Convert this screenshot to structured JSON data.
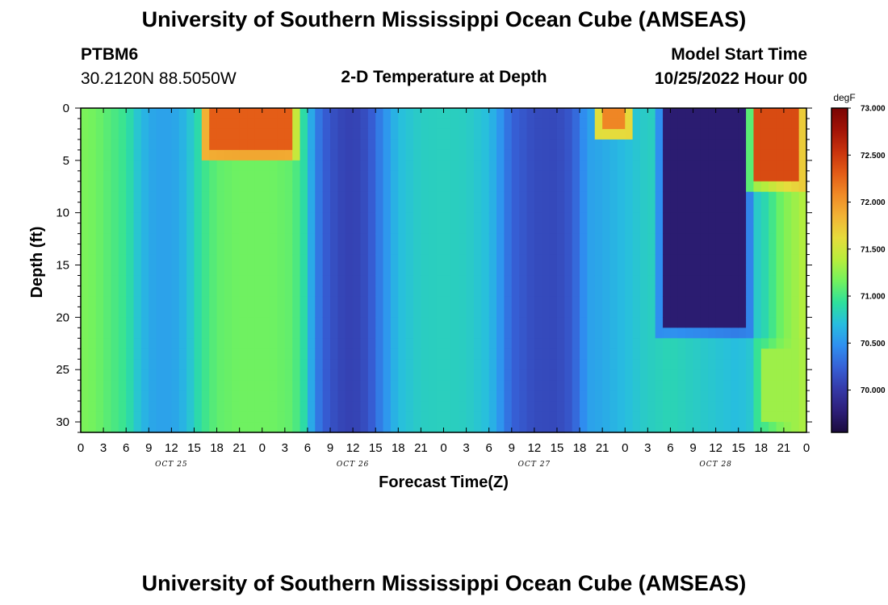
{
  "header": {
    "title": "University of Southern Mississippi Ocean Cube (AMSEAS)",
    "station_id": "PTBM6",
    "station_coords": "30.2120N  88.5050W",
    "plot_title": "2-D Temperature at Depth",
    "model_start_label": "Model Start Time",
    "model_start_value": "10/25/2022 Hour 00"
  },
  "footer": {
    "title": "University of Southern Mississippi Ocean Cube (AMSEAS)"
  },
  "chart_data": {
    "type": "heatmap",
    "title": "2-D Temperature at Depth",
    "xlabel": "Forecast Time(Z)",
    "ylabel": "Depth (ft)",
    "x_range_hours": [
      0,
      96
    ],
    "y_range_ft": [
      0,
      31
    ],
    "x_tick_labels": [
      "0",
      "3",
      "6",
      "9",
      "12",
      "15",
      "18",
      "21",
      "0",
      "3",
      "6",
      "9",
      "12",
      "15",
      "18",
      "21",
      "0",
      "3",
      "6",
      "9",
      "12",
      "15",
      "18",
      "21",
      "0",
      "3",
      "6",
      "9",
      "12",
      "15",
      "18",
      "21",
      "0"
    ],
    "day_labels": [
      "OCT 25",
      "OCT 26",
      "OCT 27",
      "OCT 28"
    ],
    "y_ticks": [
      0,
      5,
      10,
      15,
      20,
      25,
      30
    ],
    "colorbar": {
      "unit": "degF",
      "min": 69.55,
      "max": 73.0,
      "tick_values": [
        70.0,
        70.5,
        71.0,
        71.5,
        72.0,
        72.5,
        73.0
      ],
      "tick_labels": [
        "70.000",
        "70.500",
        "71.000",
        "71.500",
        "72.000",
        "72.500",
        "73.000"
      ],
      "colors": [
        "#1b0b3d",
        "#2d1f79",
        "#3539a8",
        "#3660d6",
        "#2f8ff0",
        "#27bde0",
        "#2ee09c",
        "#72f25e",
        "#b8ed3c",
        "#e6dc3c",
        "#f2b335",
        "#f08a26",
        "#e35b16",
        "#c8320d",
        "#a11307",
        "#7a0403"
      ]
    },
    "columns": [
      {
        "t": 0,
        "v": 71.2
      },
      {
        "t": 2,
        "v": 71.15
      },
      {
        "t": 4,
        "v": 71.05
      },
      {
        "t": 6,
        "v": 70.95
      },
      {
        "t": 7.5,
        "v": 70.75
      },
      {
        "t": 9,
        "v": 70.6
      },
      {
        "t": 11,
        "v": 70.55
      },
      {
        "t": 13,
        "v": 70.6
      },
      {
        "t": 14.5,
        "v": 70.75
      },
      {
        "t": 16,
        "v": 70.95
      },
      {
        "t": 18,
        "v": 71.1
      },
      {
        "t": 21,
        "v": 71.15
      },
      {
        "t": 25,
        "v": 71.15
      },
      {
        "t": 28,
        "v": 71.1
      },
      {
        "t": 29.5,
        "v": 70.9
      },
      {
        "t": 31,
        "v": 70.45
      },
      {
        "t": 32,
        "v": 70.25
      },
      {
        "t": 34,
        "v": 70.1
      },
      {
        "t": 36,
        "v": 70.05
      },
      {
        "t": 38,
        "v": 70.15
      },
      {
        "t": 40,
        "v": 70.45
      },
      {
        "t": 42,
        "v": 70.7
      },
      {
        "t": 45,
        "v": 70.8
      },
      {
        "t": 48,
        "v": 70.82
      },
      {
        "t": 51,
        "v": 70.8
      },
      {
        "t": 54,
        "v": 70.7
      },
      {
        "t": 55.5,
        "v": 70.5
      },
      {
        "t": 57,
        "v": 70.25
      },
      {
        "t": 60,
        "v": 70.12
      },
      {
        "t": 63,
        "v": 70.1
      },
      {
        "t": 65,
        "v": 70.2
      },
      {
        "t": 67,
        "v": 70.55
      },
      {
        "t": 69,
        "v": 70.6
      },
      {
        "t": 72,
        "v": 70.7
      },
      {
        "t": 75,
        "v": 70.8
      },
      {
        "t": 78,
        "v": 70.85
      },
      {
        "t": 81,
        "v": 70.8
      },
      {
        "t": 84,
        "v": 70.75
      },
      {
        "t": 87,
        "v": 70.7
      },
      {
        "t": 90,
        "v": 70.8
      },
      {
        "t": 93,
        "v": 71.2
      },
      {
        "t": 96,
        "v": 71.4
      }
    ],
    "features": [
      {
        "name": "warm surface layer",
        "t0": 15.5,
        "t1": 29,
        "d0": 0,
        "d1": 5.5,
        "v": 72.3
      },
      {
        "name": "warm surface layer",
        "t0": 67.5,
        "t1": 73.5,
        "d0": 0,
        "d1": 3.5,
        "v": 72.1
      },
      {
        "name": "cold core",
        "t0": 76,
        "t1": 89,
        "d0": 0,
        "d1": 22,
        "v": 69.75
      },
      {
        "name": "warm wedge",
        "t0": 88,
        "t1": 96,
        "d0": 0,
        "d1": 8,
        "v": 72.4
      },
      {
        "name": "warm bottom layer",
        "t0": 89,
        "t1": 96,
        "d0": 22,
        "d1": 31,
        "v": 71.3
      }
    ]
  }
}
